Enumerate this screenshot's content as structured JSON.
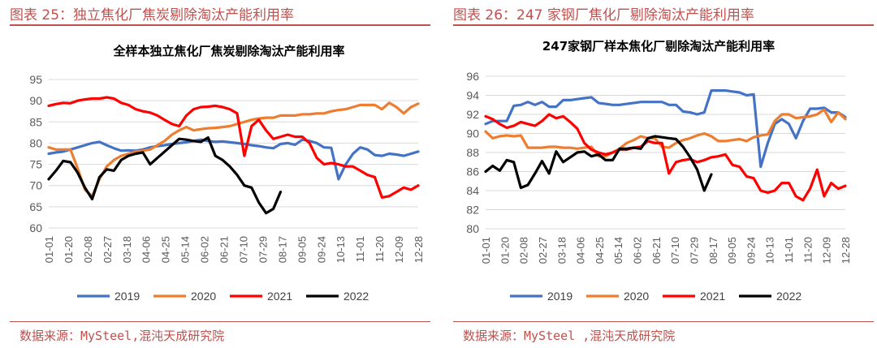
{
  "panels": [
    {
      "header": "图表 25：独立焦化厂焦炭剔除淘汰产能利用率",
      "source": "数据来源：MySteel,混沌天成研究院"
    },
    {
      "header": "图表 26：247 家钢厂焦化厂剔除淘汰产能利用率",
      "source": "数据来源：MySteel ,混沌天成研究院"
    }
  ],
  "chart_data": [
    {
      "type": "line",
      "title": "全样本独立焦化厂焦炭剔除淘汰产能利用率",
      "xlabel": "",
      "ylabel": "",
      "ylim": [
        60,
        95
      ],
      "yticks": [
        60,
        65,
        70,
        75,
        80,
        85,
        90,
        95
      ],
      "x_tick_labels": [
        "01-01",
        "01-20",
        "02-08",
        "02-27",
        "03-18",
        "04-06",
        "04-25",
        "05-14",
        "06-02",
        "06-21",
        "07-10",
        "07-29",
        "08-17",
        "09-05",
        "09-24",
        "10-13",
        "11-01",
        "11-20",
        "12-09",
        "12-28"
      ],
      "x_count": 52,
      "grid": true,
      "legend_position": "bottom",
      "series": [
        {
          "name": "2019",
          "color": "#4472c4",
          "values": [
            77.5,
            77.8,
            78.0,
            78.5,
            79.0,
            79.5,
            80.0,
            80.3,
            79.5,
            78.8,
            78.2,
            78.3,
            78.2,
            78.5,
            79.0,
            79.3,
            79.5,
            79.8,
            80.0,
            80.2,
            80.5,
            80.8,
            80.5,
            80.3,
            80.4,
            80.2,
            80.0,
            79.8,
            79.5,
            79.3,
            79.0,
            78.8,
            79.8,
            80.0,
            79.6,
            80.8,
            80.5,
            80.0,
            79.0,
            78.9,
            71.5,
            75.0,
            77.5,
            79.0,
            78.5,
            77.2,
            77.0,
            77.5,
            77.3,
            77.0,
            77.5,
            78.0
          ]
        },
        {
          "name": "2020",
          "color": "#ed7d31",
          "values": [
            79.0,
            78.5,
            78.5,
            78.5,
            74.0,
            69.0,
            67.5,
            71.5,
            74.5,
            76.0,
            77.0,
            77.5,
            78.0,
            78.2,
            78.5,
            79.5,
            80.5,
            82.0,
            83.0,
            83.8,
            83.0,
            83.3,
            83.5,
            83.6,
            83.8,
            84.0,
            84.5,
            85.0,
            85.5,
            85.8,
            86.0,
            86.0,
            86.5,
            86.5,
            86.5,
            86.8,
            86.8,
            87.0,
            87.0,
            87.5,
            87.8,
            88.0,
            88.5,
            89.0,
            89.0,
            89.0,
            88.0,
            89.5,
            88.5,
            87.0,
            88.5,
            89.3
          ]
        },
        {
          "name": "2021",
          "color": "#ff0000",
          "values": [
            88.8,
            89.2,
            89.5,
            89.4,
            90.0,
            90.3,
            90.5,
            90.5,
            90.8,
            90.5,
            89.5,
            89.0,
            88.0,
            87.5,
            87.2,
            86.5,
            85.5,
            84.5,
            84.0,
            86.5,
            88.0,
            88.5,
            88.6,
            88.8,
            88.5,
            88.0,
            87.0,
            77.0,
            84.0,
            85.5,
            83.0,
            81.0,
            81.5,
            82.0,
            81.5,
            81.5,
            80.0,
            76.5,
            75.0,
            75.3,
            75.0,
            74.5,
            74.5,
            73.5,
            72.5,
            72.0,
            67.2,
            67.5,
            68.5,
            69.5,
            69.0,
            70.0
          ]
        },
        {
          "name": "2022",
          "color": "#000000",
          "values": [
            71.5,
            73.5,
            75.8,
            75.5,
            73.0,
            69.5,
            66.8,
            72.0,
            73.8,
            73.5,
            76.0,
            77.0,
            77.5,
            77.8,
            75.0,
            76.5,
            78.0,
            79.5,
            81.0,
            80.8,
            80.5,
            80.3,
            81.3,
            77.0,
            76.0,
            74.5,
            72.5,
            70.0,
            69.5,
            66.0,
            63.5,
            64.5,
            68.5
          ]
        }
      ]
    },
    {
      "type": "line",
      "title": "247家钢厂样本焦化厂剔除淘汰产能利用率",
      "xlabel": "",
      "ylabel": "",
      "ylim": [
        80,
        96
      ],
      "yticks": [
        80,
        82,
        84,
        86,
        88,
        90,
        92,
        94,
        96
      ],
      "x_tick_labels": [
        "01-01",
        "01-20",
        "02-08",
        "02-27",
        "03-18",
        "04-06",
        "04-25",
        "05-14",
        "06-02",
        "06-21",
        "07-10",
        "07-29",
        "08-17",
        "09-05",
        "09-24",
        "10-13",
        "11-01",
        "11-20",
        "12-09",
        "12-28"
      ],
      "x_count": 52,
      "grid": true,
      "legend_position": "bottom",
      "series": [
        {
          "name": "2019",
          "color": "#4472c4",
          "values": [
            91.0,
            91.3,
            91.3,
            91.3,
            92.9,
            93.0,
            93.3,
            93.0,
            93.3,
            92.8,
            92.8,
            93.5,
            93.5,
            93.6,
            93.7,
            93.8,
            93.2,
            93.1,
            93.0,
            93.0,
            93.1,
            93.2,
            93.3,
            93.3,
            93.3,
            93.3,
            93.0,
            93.0,
            92.3,
            92.2,
            92.0,
            92.2,
            94.5,
            94.5,
            94.5,
            94.4,
            94.3,
            94.0,
            94.1,
            86.5,
            89.0,
            91.0,
            91.5,
            91.0,
            89.5,
            91.3,
            92.6,
            92.6,
            92.7,
            92.2,
            92.2,
            91.7
          ]
        },
        {
          "name": "2020",
          "color": "#ed7d31",
          "values": [
            90.2,
            89.5,
            89.7,
            89.8,
            89.7,
            89.8,
            88.5,
            88.5,
            88.5,
            88.6,
            88.6,
            88.5,
            88.5,
            88.4,
            88.5,
            88.6,
            87.6,
            87.6,
            88.0,
            88.4,
            89.0,
            89.3,
            89.7,
            89.5,
            89.5,
            88.6,
            88.5,
            89.0,
            89.3,
            89.5,
            89.8,
            90.0,
            89.7,
            89.2,
            89.2,
            89.3,
            89.4,
            89.2,
            89.6,
            89.8,
            89.9,
            91.3,
            92.0,
            92.0,
            91.6,
            91.7,
            91.8,
            92.0,
            92.5,
            91.2,
            92.2,
            91.5
          ]
        },
        {
          "name": "2021",
          "color": "#ff0000",
          "values": [
            91.8,
            91.5,
            91.0,
            90.6,
            90.8,
            91.2,
            91.0,
            90.8,
            91.3,
            92.0,
            91.6,
            91.8,
            91.2,
            90.5,
            89.0,
            88.3,
            88.0,
            87.8,
            88.0,
            88.3,
            88.3,
            88.5,
            88.6,
            89.2,
            89.0,
            89.0,
            85.8,
            87.0,
            87.2,
            87.3,
            87.0,
            87.2,
            87.5,
            87.6,
            87.8,
            86.7,
            86.5,
            85.5,
            85.3,
            84.0,
            83.8,
            84.0,
            84.8,
            84.8,
            83.4,
            83.0,
            84.2,
            86.2,
            83.4,
            84.8,
            84.2,
            84.5
          ]
        },
        {
          "name": "2022",
          "color": "#000000",
          "values": [
            86.0,
            86.6,
            86.1,
            87.2,
            87.0,
            84.3,
            84.6,
            85.8,
            87.1,
            85.8,
            88.1,
            87.0,
            87.5,
            88.0,
            88.1,
            87.6,
            87.8,
            87.2,
            87.2,
            88.4,
            88.4,
            88.5,
            88.4,
            89.5,
            89.7,
            89.6,
            89.5,
            89.4,
            88.6,
            87.5,
            86.2,
            84.0,
            85.7
          ]
        }
      ]
    }
  ]
}
